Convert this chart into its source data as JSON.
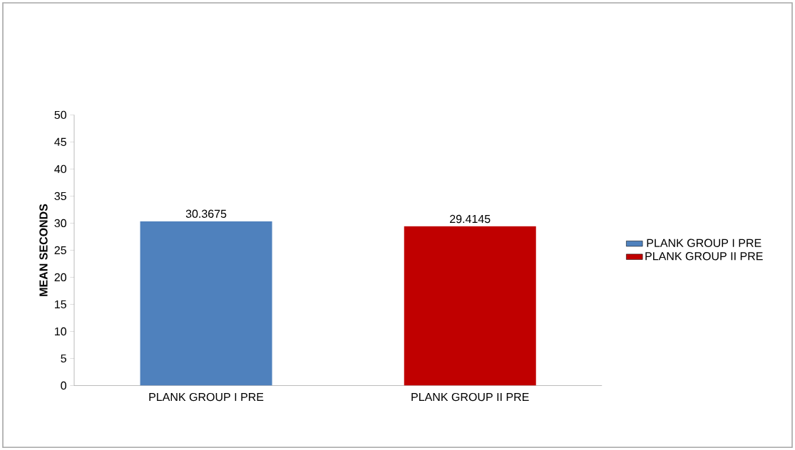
{
  "chart_data": {
    "type": "bar",
    "categories": [
      "PLANK GROUP I PRE",
      "PLANK GROUP II PRE"
    ],
    "ylabel": "MEAN SECONDS",
    "series": [
      {
        "name": "PLANK GROUP I PRE",
        "color": "#4f81bd",
        "values": [
          30.3675,
          null
        ]
      },
      {
        "name": "PLANK GROUP II PRE",
        "color": "#c00000",
        "values": [
          null,
          29.4145
        ]
      }
    ],
    "ylim": [
      0,
      50
    ],
    "yticks": [
      0,
      5,
      10,
      15,
      20,
      25,
      30,
      35,
      40,
      45,
      50
    ],
    "data_labels": true,
    "legend": "right",
    "grid": false
  }
}
